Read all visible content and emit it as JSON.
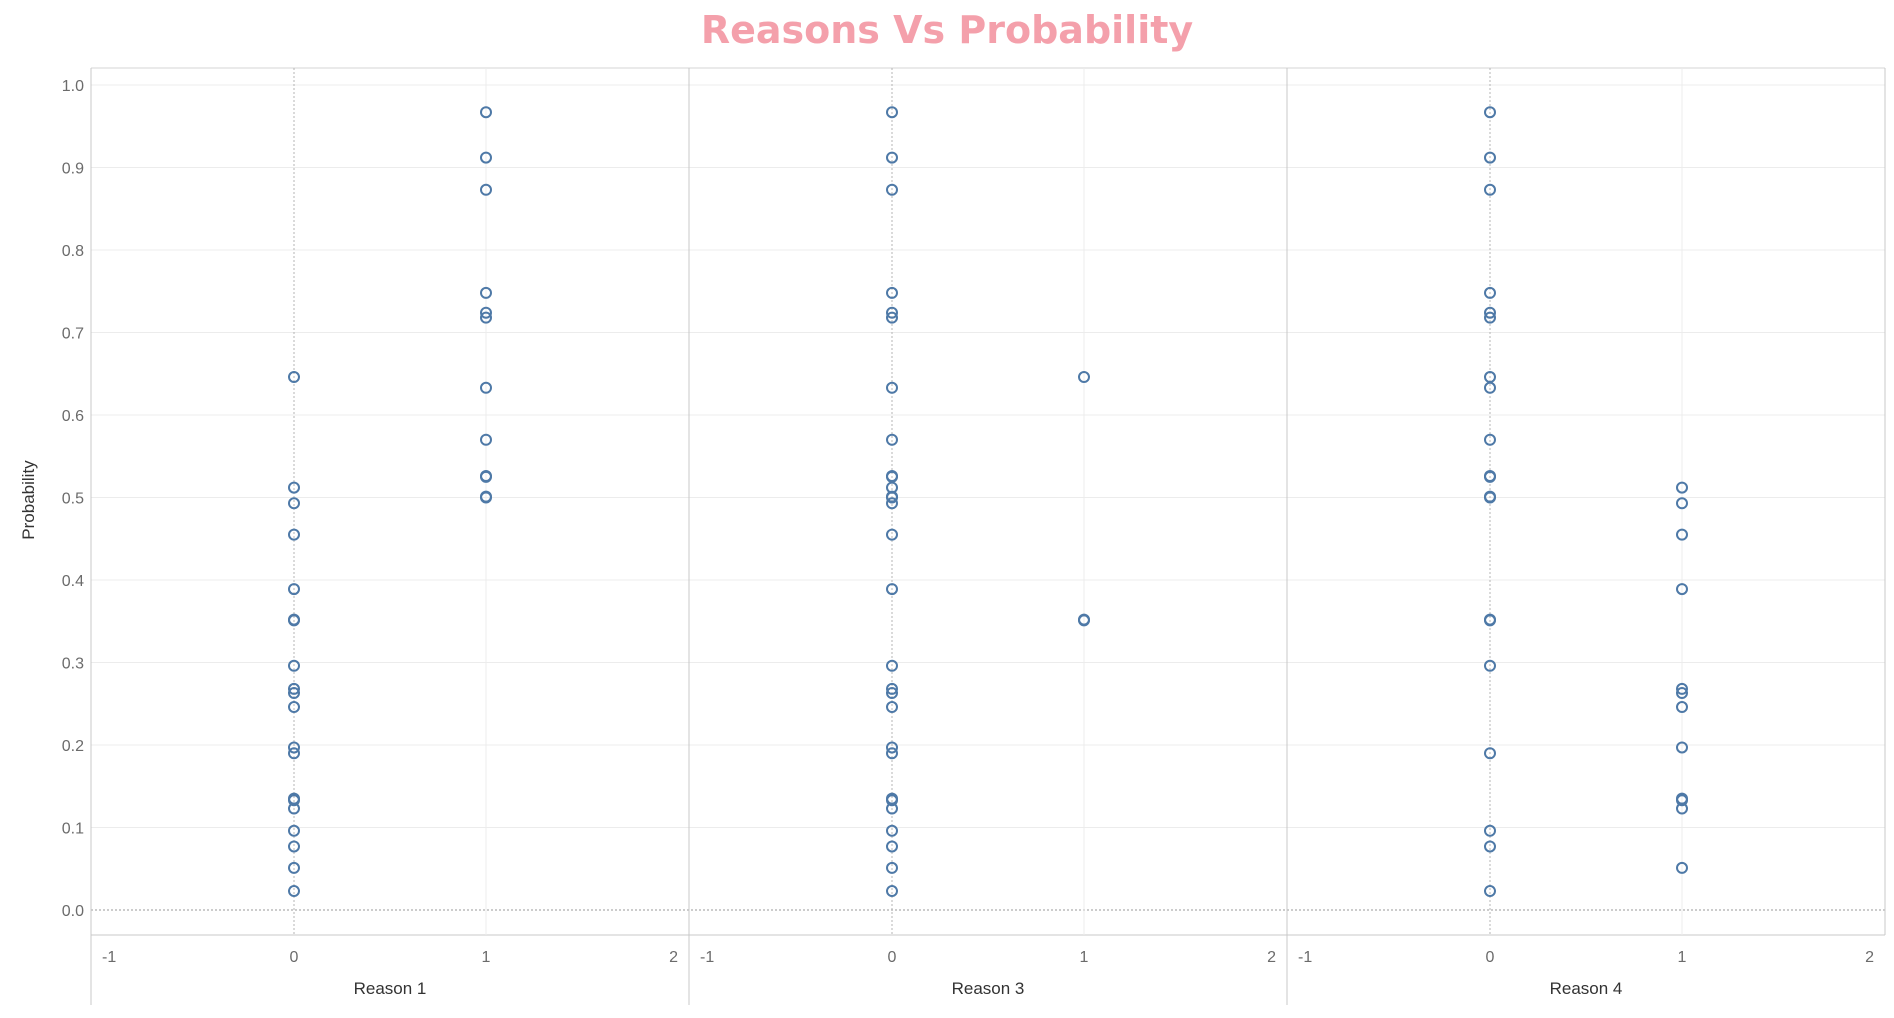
{
  "chart_data": {
    "type": "scatter",
    "title": "Reasons Vs Probability",
    "ylabel": "Probability",
    "ylim": [
      0,
      1
    ],
    "y_ticks": [
      "0.0",
      "0.1",
      "0.2",
      "0.3",
      "0.4",
      "0.5",
      "0.6",
      "0.7",
      "0.8",
      "0.9",
      "1.0"
    ],
    "xlim": [
      -1,
      2
    ],
    "x_ticks": [
      "-1",
      "0",
      "1",
      "2"
    ],
    "grid": true,
    "colors": {
      "marker": "#4e79a7",
      "title": "#f4a0ab"
    },
    "panels": [
      {
        "xlabel": "Reason 1",
        "points": {
          "0": [
            0.646,
            0.512,
            0.493,
            0.455,
            0.389,
            0.352,
            0.351,
            0.296,
            0.268,
            0.263,
            0.246,
            0.197,
            0.19,
            0.135,
            0.133,
            0.123,
            0.096,
            0.077,
            0.051,
            0.023
          ],
          "1": [
            0.967,
            0.912,
            0.873,
            0.748,
            0.724,
            0.718,
            0.633,
            0.57,
            0.526,
            0.525,
            0.501,
            0.5
          ]
        }
      },
      {
        "xlabel": "Reason 3",
        "points": {
          "0": [
            0.967,
            0.912,
            0.873,
            0.748,
            0.724,
            0.718,
            0.633,
            0.57,
            0.526,
            0.525,
            0.512,
            0.501,
            0.5,
            0.493,
            0.455,
            0.389,
            0.296,
            0.268,
            0.263,
            0.246,
            0.197,
            0.19,
            0.135,
            0.133,
            0.123,
            0.096,
            0.077,
            0.051,
            0.023
          ],
          "1": [
            0.646,
            0.352,
            0.351
          ]
        }
      },
      {
        "xlabel": "Reason 4",
        "points": {
          "0": [
            0.967,
            0.912,
            0.873,
            0.748,
            0.724,
            0.718,
            0.646,
            0.633,
            0.57,
            0.526,
            0.525,
            0.501,
            0.5,
            0.352,
            0.351,
            0.296,
            0.19,
            0.096,
            0.077,
            0.023
          ],
          "1": [
            0.512,
            0.493,
            0.455,
            0.389,
            0.268,
            0.263,
            0.246,
            0.197,
            0.135,
            0.133,
            0.123,
            0.051
          ]
        }
      }
    ]
  }
}
